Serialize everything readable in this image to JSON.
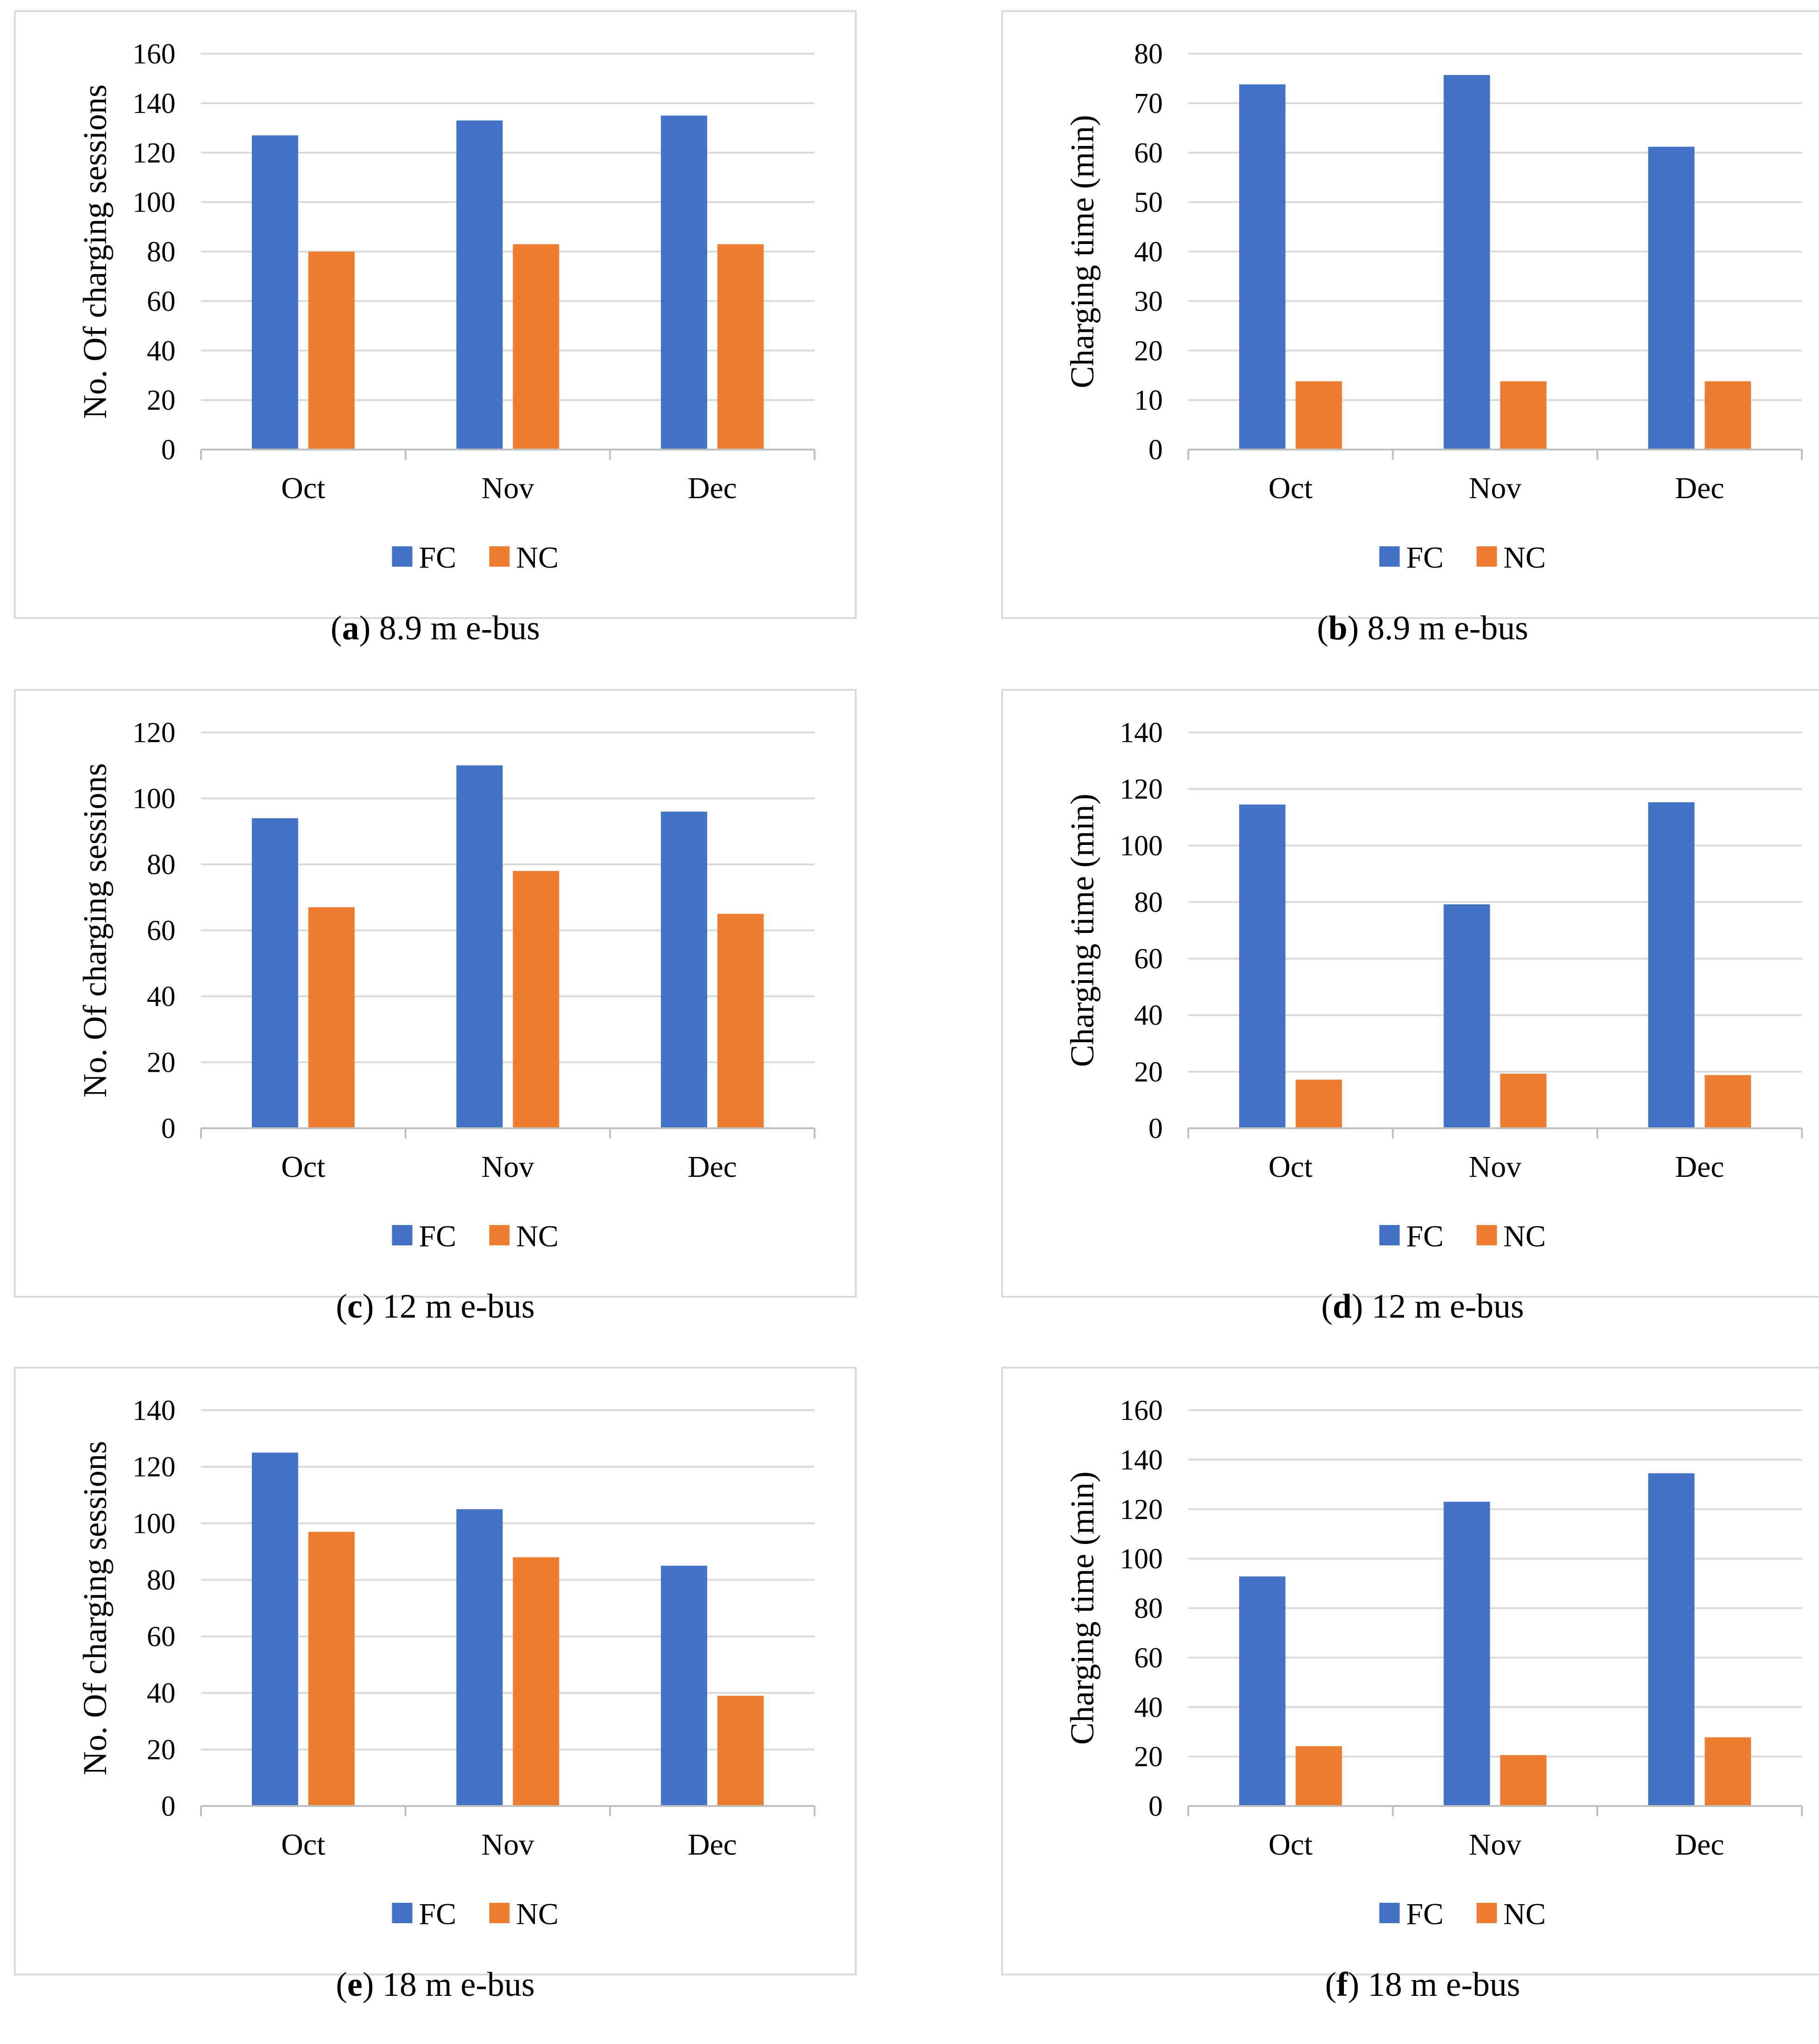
{
  "chart_data": [
    {
      "id": "a",
      "type": "bar",
      "caption": {
        "letter": "a",
        "text": "8.9 m e-bus"
      },
      "ylabel": "No. Of charging sessions",
      "xlabel": "",
      "ylim": [
        0,
        160
      ],
      "ytick_step": 20,
      "categories": [
        "Oct",
        "Nov",
        "Dec"
      ],
      "series": [
        {
          "name": "FC",
          "color": "#4472C4",
          "values": [
            127,
            133,
            135
          ]
        },
        {
          "name": "NC",
          "color": "#ED7D31",
          "values": [
            80,
            83,
            83
          ]
        }
      ],
      "grid": true,
      "legend": "bottom"
    },
    {
      "id": "b",
      "type": "bar",
      "caption": {
        "letter": "b",
        "text": "8.9 m e-bus"
      },
      "ylabel": "Charging time (min)",
      "xlabel": "",
      "ylim": [
        0,
        80
      ],
      "ytick_step": 10,
      "categories": [
        "Oct",
        "Nov",
        "Dec"
      ],
      "series": [
        {
          "name": "FC",
          "color": "#4472C4",
          "values": [
            73.8,
            75.7,
            61.2
          ]
        },
        {
          "name": "NC",
          "color": "#ED7D31",
          "values": [
            13.8,
            13.8,
            13.8
          ]
        }
      ],
      "grid": true,
      "legend": "bottom"
    },
    {
      "id": "c",
      "type": "bar",
      "caption": {
        "letter": "c",
        "text": "12 m e-bus"
      },
      "ylabel": "No. Of charging sessions",
      "xlabel": "",
      "ylim": [
        0,
        120
      ],
      "ytick_step": 20,
      "categories": [
        "Oct",
        "Nov",
        "Dec"
      ],
      "series": [
        {
          "name": "FC",
          "color": "#4472C4",
          "values": [
            94,
            110,
            96
          ]
        },
        {
          "name": "NC",
          "color": "#ED7D31",
          "values": [
            67,
            78,
            65
          ]
        }
      ],
      "grid": true,
      "legend": "bottom"
    },
    {
      "id": "d",
      "type": "bar",
      "caption": {
        "letter": "d",
        "text": "12 m e-bus"
      },
      "ylabel": "Charging time (min)",
      "xlabel": "",
      "ylim": [
        0,
        140
      ],
      "ytick_step": 20,
      "categories": [
        "Oct",
        "Nov",
        "Dec"
      ],
      "series": [
        {
          "name": "FC",
          "color": "#4472C4",
          "values": [
            114.5,
            79.2,
            115.3
          ]
        },
        {
          "name": "NC",
          "color": "#ED7D31",
          "values": [
            17.2,
            19.3,
            18.8
          ]
        }
      ],
      "grid": true,
      "legend": "bottom"
    },
    {
      "id": "e",
      "type": "bar",
      "caption": {
        "letter": "e",
        "text": "18 m e-bus"
      },
      "ylabel": "No. Of charging sessions",
      "xlabel": "",
      "ylim": [
        0,
        140
      ],
      "ytick_step": 20,
      "categories": [
        "Oct",
        "Nov",
        "Dec"
      ],
      "series": [
        {
          "name": "FC",
          "color": "#4472C4",
          "values": [
            125,
            105,
            85
          ]
        },
        {
          "name": "NC",
          "color": "#ED7D31",
          "values": [
            97,
            88,
            39
          ]
        }
      ],
      "grid": true,
      "legend": "bottom"
    },
    {
      "id": "f",
      "type": "bar",
      "caption": {
        "letter": "f",
        "text": "18 m e-bus"
      },
      "ylabel": "Charging time (min)",
      "xlabel": "",
      "ylim": [
        0,
        160
      ],
      "ytick_step": 20,
      "categories": [
        "Oct",
        "Nov",
        "Dec"
      ],
      "series": [
        {
          "name": "FC",
          "color": "#4472C4",
          "values": [
            92.8,
            123,
            134.5
          ]
        },
        {
          "name": "NC",
          "color": "#ED7D31",
          "values": [
            24.2,
            20.6,
            27.8
          ]
        }
      ],
      "grid": true,
      "legend": "bottom"
    }
  ]
}
